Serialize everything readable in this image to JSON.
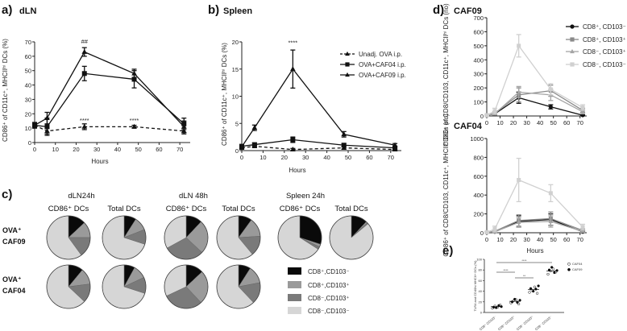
{
  "panel_labels": {
    "a": "a)",
    "b": "b)",
    "c": "c)",
    "d": "d)",
    "e": "e)"
  },
  "colors": {
    "cat0": "#0a0a0a",
    "cat1": "#9a9a9a",
    "cat2": "#7a7a7a",
    "cat3": "#d6d6d6",
    "e_white": "#ffffff",
    "e_black": "#000000"
  },
  "chart_data": [
    {
      "id": "a",
      "type": "line",
      "title": "dLN",
      "xlabel": "Hours",
      "ylabel": "CD86⁺ of CD11c⁺, MHCIIʰⁱ DCs (%)",
      "xlim": [
        0,
        75
      ],
      "ylim": [
        0,
        70
      ],
      "xticks": [
        "0",
        "10",
        "20",
        "30",
        "40",
        "50",
        "60",
        "70"
      ],
      "yticks": [
        "0",
        "10",
        "20",
        "30",
        "40",
        "50",
        "60",
        "70"
      ],
      "series": [
        {
          "name": "Unadj. OVA i.p.",
          "marker": "triangle",
          "dash": true,
          "x": [
            0,
            6,
            24,
            48,
            72
          ],
          "y": [
            12,
            8,
            11,
            11,
            8
          ],
          "err": [
            1.5,
            2,
            2,
            1,
            2
          ]
        },
        {
          "name": "OVA+CAF04 i.p.",
          "marker": "square",
          "dash": false,
          "x": [
            0,
            6,
            24,
            48,
            72
          ],
          "y": [
            12,
            11,
            48,
            44,
            13
          ],
          "err": [
            2,
            6,
            5,
            6,
            4
          ]
        },
        {
          "name": "OVA+CAF09 i.p.",
          "marker": "triangle",
          "dash": false,
          "x": [
            0,
            6,
            24,
            48,
            72
          ],
          "y": [
            12,
            17,
            63,
            48,
            11
          ],
          "err": [
            1.5,
            4,
            3,
            3,
            4
          ]
        }
      ],
      "annotations": [
        {
          "text": "##",
          "x": 24,
          "y": 69
        },
        {
          "text": "****",
          "x": 24,
          "y": 14
        },
        {
          "text": "****",
          "x": 48,
          "y": 14
        }
      ]
    },
    {
      "id": "b",
      "type": "line",
      "title": "Spleen",
      "xlabel": "Hours",
      "ylabel": "CD86⁺ of CD11c⁺, MHCIIʰⁱ DCs (%)",
      "xlim": [
        0,
        75
      ],
      "ylim": [
        0,
        20
      ],
      "xticks": [
        "0",
        "10",
        "20",
        "30",
        "40",
        "50",
        "60",
        "70"
      ],
      "yticks": [
        "0",
        "5",
        "10",
        "15",
        "20"
      ],
      "series": [
        {
          "name": "Unadj. OVA i.p.",
          "marker": "triangle",
          "dash": true,
          "x": [
            0,
            6,
            24,
            48,
            72
          ],
          "y": [
            0.5,
            0.8,
            0.2,
            0.5,
            0.2
          ],
          "err": [
            0.2,
            0.2,
            0.2,
            0.2,
            0.2
          ]
        },
        {
          "name": "OVA+CAF04 i.p.",
          "marker": "square",
          "dash": false,
          "x": [
            0,
            6,
            24,
            48,
            72
          ],
          "y": [
            0.8,
            1.1,
            2.0,
            1.0,
            0.5
          ],
          "err": [
            0.3,
            0.3,
            0.5,
            0.3,
            0.3
          ]
        },
        {
          "name": "OVA+CAF09 i.p.",
          "marker": "triangle",
          "dash": false,
          "x": [
            0,
            6,
            24,
            48,
            72
          ],
          "y": [
            0.7,
            4.2,
            15.0,
            3.0,
            1.0
          ],
          "err": [
            0.3,
            0.5,
            3.5,
            0.5,
            0.3
          ]
        }
      ],
      "annotations": [
        {
          "text": "****",
          "x": 24,
          "y": 19.5
        }
      ],
      "legend": [
        "Unadj. OVA i.p.",
        "OVA+CAF04 i.p.",
        "OVA+CAF09 i.p."
      ]
    },
    {
      "id": "d_top",
      "type": "line",
      "title": "CAF09",
      "xlabel": "",
      "ylabel": "CD86⁺ of CD8/CD103, CD11c⁺, MHCIIʰⁱ DCs (no)",
      "xlim": [
        0,
        75
      ],
      "ylim": [
        0,
        700
      ],
      "xticks": [
        "0",
        "10",
        "20",
        "30",
        "40",
        "50",
        "60",
        "70"
      ],
      "yticks": [
        "0",
        "100",
        "200",
        "300",
        "400",
        "500",
        "600",
        "700"
      ],
      "series": [
        {
          "name": "CD8⁺, CD103⁻",
          "color": "#111111",
          "marker": "circle",
          "x": [
            0,
            6,
            24,
            48,
            72
          ],
          "y": [
            5,
            15,
            130,
            65,
            5
          ],
          "err": [
            3,
            8,
            40,
            15,
            3
          ]
        },
        {
          "name": "CD8⁺, CD103⁺",
          "color": "#8a8a8a",
          "marker": "square",
          "x": [
            0,
            6,
            24,
            48,
            72
          ],
          "y": [
            5,
            20,
            150,
            180,
            40
          ],
          "err": [
            3,
            10,
            50,
            40,
            15
          ]
        },
        {
          "name": "CD8⁻, CD103⁺",
          "color": "#a5a5a5",
          "marker": "triangle",
          "x": [
            0,
            6,
            24,
            48,
            72
          ],
          "y": [
            5,
            15,
            170,
            150,
            30
          ],
          "err": [
            3,
            8,
            40,
            40,
            15
          ]
        },
        {
          "name": "CD8⁻, CD103⁻",
          "color": "#d0d0d0",
          "marker": "square",
          "x": [
            0,
            6,
            24,
            48,
            72
          ],
          "y": [
            5,
            35,
            500,
            190,
            60
          ],
          "err": [
            3,
            20,
            80,
            40,
            20
          ]
        }
      ],
      "legend": [
        "CD8⁺, CD103⁻",
        "CD8⁺, CD103⁺",
        "CD8⁻, CD103⁺",
        "CD8⁻, CD103⁻"
      ]
    },
    {
      "id": "d_bottom",
      "type": "line",
      "title": "CAF04",
      "xlabel": "Hours",
      "ylabel": "CD86⁺ of CD8/CD103, CD11c⁺, MHCIIʰⁱ DCs (no)",
      "xlim": [
        0,
        75
      ],
      "ylim": [
        0,
        1000
      ],
      "xticks": [
        "0",
        "10",
        "20",
        "30",
        "40",
        "50",
        "60",
        "70"
      ],
      "yticks": [
        "0",
        "200",
        "400",
        "600",
        "800",
        "1000"
      ],
      "series": [
        {
          "name": "CD8⁺, CD103⁻",
          "color": "#111111",
          "marker": "circle",
          "x": [
            0,
            6,
            24,
            48,
            72
          ],
          "y": [
            5,
            10,
            120,
            140,
            10
          ],
          "err": [
            3,
            8,
            60,
            60,
            8
          ]
        },
        {
          "name": "CD8⁺, CD103⁺",
          "color": "#8a8a8a",
          "marker": "square",
          "x": [
            0,
            6,
            24,
            48,
            72
          ],
          "y": [
            5,
            15,
            130,
            150,
            25
          ],
          "err": [
            3,
            10,
            60,
            70,
            15
          ]
        },
        {
          "name": "CD8⁻, CD103⁺",
          "color": "#a5a5a5",
          "marker": "triangle",
          "x": [
            0,
            6,
            24,
            48,
            72
          ],
          "y": [
            5,
            10,
            110,
            120,
            15
          ],
          "err": [
            3,
            8,
            50,
            60,
            10
          ]
        },
        {
          "name": "CD8⁻, CD103⁻",
          "color": "#d0d0d0",
          "marker": "square",
          "x": [
            0,
            6,
            24,
            48,
            72
          ],
          "y": [
            5,
            40,
            560,
            420,
            60
          ],
          "err": [
            3,
            30,
            230,
            90,
            30
          ]
        }
      ]
    },
    {
      "id": "c",
      "type": "pie",
      "group_titles": [
        "dLN24h",
        "dLN 48h",
        "Spleen 24h"
      ],
      "column_titles": [
        "CD86⁺ DCs",
        "Total DCs",
        "CD86⁺ DCs",
        "Total DCs",
        "CD86⁺ DCs",
        "Total DCs"
      ],
      "row_labels": [
        "OVA⁺\nCAF09",
        "OVA⁺\nCAF04"
      ],
      "categories": [
        "CD8⁺,CD103⁻",
        "CD8⁺,CD103⁺",
        "CD8⁻,CD103⁺",
        "CD8⁻,CD103⁻"
      ],
      "rows": [
        [
          [
            13,
            12,
            15,
            60
          ],
          [
            9,
            10,
            11,
            70
          ],
          [
            12,
            25,
            30,
            33
          ],
          [
            10,
            14,
            15,
            61
          ],
          [
            30,
            2,
            2,
            66
          ],
          [
            12,
            1,
            1,
            86
          ]
        ],
        [
          [
            11,
            12,
            14,
            63
          ],
          [
            8,
            10,
            12,
            70
          ],
          [
            13,
            25,
            30,
            32
          ],
          [
            9,
            13,
            16,
            62
          ]
        ]
      ]
    },
    {
      "id": "e",
      "type": "scatter",
      "ylabel": "TLR4 and CD40hi MHCII+ DCs (%)",
      "ylim": [
        0,
        100
      ],
      "yticks": [
        "0",
        "20",
        "40",
        "60",
        "80",
        "100"
      ],
      "categories": [
        "CD8⁺ CD103⁻",
        "CD8⁺ CD103⁺",
        "CD8⁻ CD103⁺",
        "CD8⁻ CD103⁻"
      ],
      "groups": [
        {
          "name": "CAF04",
          "marker": "open",
          "values": [
            [
              8,
              12,
              10,
              14
            ],
            [
              18,
              22,
              24,
              16
            ],
            [
              38,
              42,
              48,
              36
            ],
            [
              72,
              78,
              82,
              76
            ]
          ]
        },
        {
          "name": "CAF09",
          "marker": "filled",
          "values": [
            [
              10,
              9,
              13,
              11
            ],
            [
              20,
              25,
              19,
              23
            ],
            [
              45,
              40,
              44,
              50
            ],
            [
              80,
              85,
              75,
              79
            ]
          ]
        }
      ],
      "means": [
        11,
        21,
        43,
        78
      ],
      "significance": [
        "****",
        "**",
        "****"
      ],
      "legend": [
        "CAF04",
        "CAF09"
      ]
    }
  ]
}
